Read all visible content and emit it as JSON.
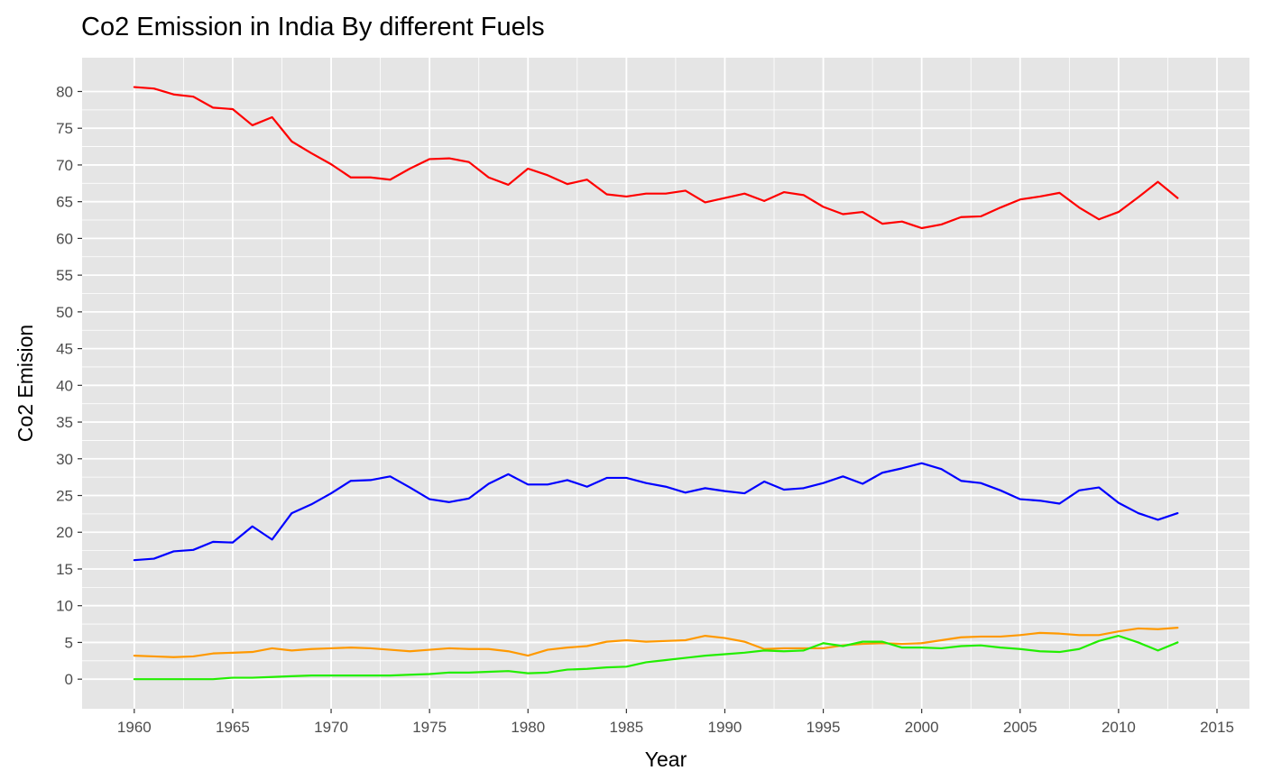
{
  "chart_data": {
    "type": "line",
    "title": "Co2 Emission in India By different Fuels",
    "xlabel": "Year",
    "ylabel": "Co2 Emision",
    "xlim": [
      1957.35,
      2016.65
    ],
    "ylim": [
      -4.03,
      84.6
    ],
    "x_ticks": [
      1960,
      1965,
      1970,
      1975,
      1980,
      1985,
      1990,
      1995,
      2000,
      2005,
      2010,
      2015
    ],
    "y_ticks": [
      0,
      5,
      10,
      15,
      20,
      25,
      30,
      35,
      40,
      45,
      50,
      55,
      60,
      65,
      70,
      75,
      80
    ],
    "x_tick_labels": [
      "1960",
      "1965",
      "1970",
      "1975",
      "1980",
      "1985",
      "1990",
      "1995",
      "2000",
      "2005",
      "2010",
      "2015"
    ],
    "y_tick_labels": [
      "0",
      "5",
      "10",
      "15",
      "20",
      "25",
      "30",
      "35",
      "40",
      "45",
      "50",
      "55",
      "60",
      "65",
      "70",
      "75",
      "80"
    ],
    "grid": true,
    "legend": "none",
    "background": "#e5e5e5",
    "x": [
      1960,
      1961,
      1962,
      1963,
      1964,
      1965,
      1966,
      1967,
      1968,
      1969,
      1970,
      1971,
      1972,
      1973,
      1974,
      1975,
      1976,
      1977,
      1978,
      1979,
      1980,
      1981,
      1982,
      1983,
      1984,
      1985,
      1986,
      1987,
      1988,
      1989,
      1990,
      1991,
      1992,
      1993,
      1994,
      1995,
      1996,
      1997,
      1998,
      1999,
      2000,
      2001,
      2002,
      2003,
      2004,
      2005,
      2006,
      2007,
      2008,
      2009,
      2010,
      2011,
      2012,
      2013
    ],
    "series": [
      {
        "color": "#ff0000",
        "values": [
          80.6,
          80.4,
          79.6,
          79.3,
          77.8,
          77.6,
          75.4,
          76.5,
          73.2,
          71.6,
          70.1,
          68.3,
          68.3,
          68.0,
          69.5,
          70.8,
          70.9,
          70.4,
          68.3,
          67.3,
          69.5,
          68.6,
          67.4,
          68.0,
          66.0,
          65.7,
          66.1,
          66.1,
          66.5,
          64.9,
          65.5,
          66.1,
          65.1,
          66.3,
          65.9,
          64.3,
          63.3,
          63.6,
          62.0,
          62.3,
          61.4,
          61.9,
          62.9,
          63.0,
          64.2,
          65.3,
          65.7,
          66.2,
          64.2,
          62.6,
          63.6,
          65.6,
          67.7,
          65.5
        ]
      },
      {
        "color": "#0000ff",
        "values": [
          16.2,
          16.4,
          17.4,
          17.6,
          18.7,
          18.6,
          20.8,
          19.0,
          22.6,
          23.8,
          25.3,
          27.0,
          27.1,
          27.6,
          26.1,
          24.5,
          24.1,
          24.6,
          26.6,
          27.9,
          26.5,
          26.5,
          27.1,
          26.2,
          27.4,
          27.4,
          26.7,
          26.2,
          25.4,
          26.0,
          25.6,
          25.3,
          26.9,
          25.8,
          26.0,
          26.7,
          27.6,
          26.6,
          28.1,
          28.7,
          29.4,
          28.6,
          27.0,
          26.7,
          25.7,
          24.5,
          24.3,
          23.9,
          25.7,
          26.1,
          24.0,
          22.6,
          21.7,
          22.6
        ]
      },
      {
        "color": "#ff9900",
        "values": [
          3.2,
          3.1,
          3.0,
          3.1,
          3.5,
          3.6,
          3.7,
          4.2,
          3.9,
          4.1,
          4.2,
          4.3,
          4.2,
          4.0,
          3.8,
          4.0,
          4.2,
          4.1,
          4.1,
          3.8,
          3.2,
          4.0,
          4.3,
          4.5,
          5.1,
          5.3,
          5.1,
          5.2,
          5.3,
          5.9,
          5.6,
          5.1,
          4.1,
          4.2,
          4.2,
          4.2,
          4.6,
          4.8,
          4.9,
          4.8,
          4.9,
          5.3,
          5.7,
          5.8,
          5.8,
          6.0,
          6.3,
          6.2,
          6.0,
          6.0,
          6.5,
          6.9,
          6.8,
          7.0
        ]
      },
      {
        "color": "#22ee00",
        "values": [
          0.0,
          0.0,
          0.0,
          0.0,
          0.0,
          0.2,
          0.2,
          0.3,
          0.4,
          0.5,
          0.5,
          0.5,
          0.5,
          0.5,
          0.6,
          0.7,
          0.9,
          0.9,
          1.0,
          1.1,
          0.8,
          0.9,
          1.3,
          1.4,
          1.6,
          1.7,
          2.3,
          2.6,
          2.9,
          3.2,
          3.4,
          3.6,
          3.9,
          3.8,
          3.9,
          4.9,
          4.5,
          5.1,
          5.1,
          4.3,
          4.3,
          4.2,
          4.5,
          4.6,
          4.3,
          4.1,
          3.8,
          3.7,
          4.1,
          5.2,
          5.9,
          5.0,
          3.9,
          5.0
        ]
      }
    ]
  }
}
